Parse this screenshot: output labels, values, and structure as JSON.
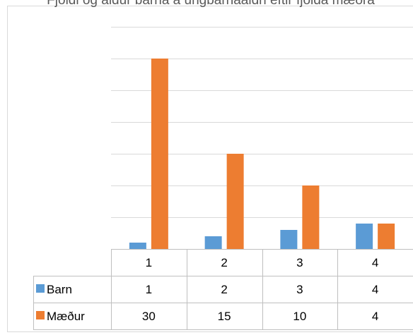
{
  "chart_data": {
    "type": "bar",
    "title": "Fjöldi og aldur barna á ungbarnaaldri eftir fjölda mæðra",
    "categories": [
      "1",
      "2",
      "3",
      "4"
    ],
    "series": [
      {
        "name": "Barn",
        "values": [
          1,
          2,
          3,
          4
        ],
        "color": "#5b9bd5"
      },
      {
        "name": "Mæður",
        "values": [
          30,
          15,
          10,
          4
        ],
        "color": "#ed7d31"
      }
    ],
    "ylim": [
      0,
      35
    ],
    "grid": true,
    "legend": "data-table"
  }
}
